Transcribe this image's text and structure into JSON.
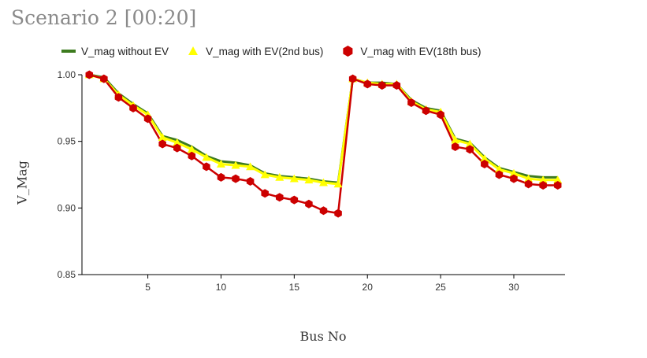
{
  "title": "Scenario 2 [00:20]",
  "colors": {
    "series_line_0": "#3d7b1f",
    "series_line_1": "#ffff00",
    "series_line_2": "#cc0000",
    "axis": "#000000"
  },
  "chart_data": {
    "type": "line",
    "title": "Scenario 2 [00:20]",
    "xlabel": "Bus No",
    "ylabel": "V_Mag",
    "xlim": [
      0.5,
      33.5
    ],
    "ylim": [
      0.85,
      1.0
    ],
    "xticks": [
      5,
      10,
      15,
      20,
      25,
      30
    ],
    "yticks": [
      0.85,
      0.9,
      0.95,
      1.0
    ],
    "ytick_labels": [
      "0.85",
      "0.90",
      "0.95",
      "1.00"
    ],
    "legend_position": "top",
    "x": [
      1,
      2,
      3,
      4,
      5,
      6,
      7,
      8,
      9,
      10,
      11,
      12,
      13,
      14,
      15,
      16,
      17,
      18,
      19,
      20,
      21,
      22,
      23,
      24,
      25,
      26,
      27,
      28,
      29,
      30,
      31,
      32,
      33
    ],
    "series": [
      {
        "name": "V_mag without EV",
        "marker": "line",
        "values": [
          1.0,
          0.998,
          0.986,
          0.978,
          0.971,
          0.954,
          0.951,
          0.946,
          0.939,
          0.935,
          0.934,
          0.932,
          0.926,
          0.924,
          0.923,
          0.922,
          0.92,
          0.919,
          0.997,
          0.994,
          0.994,
          0.993,
          0.981,
          0.975,
          0.973,
          0.952,
          0.949,
          0.938,
          0.93,
          0.927,
          0.924,
          0.923,
          0.923
        ]
      },
      {
        "name": "V_mag with EV(2nd bus)",
        "marker": "triangle",
        "values": [
          1.0,
          0.997,
          0.985,
          0.977,
          0.97,
          0.953,
          0.949,
          0.944,
          0.938,
          0.933,
          0.932,
          0.931,
          0.925,
          0.923,
          0.922,
          0.921,
          0.919,
          0.918,
          0.997,
          0.994,
          0.993,
          0.993,
          0.98,
          0.974,
          0.972,
          0.951,
          0.948,
          0.937,
          0.929,
          0.926,
          0.922,
          0.921,
          0.921
        ]
      },
      {
        "name": "V_mag with EV(18th bus)",
        "marker": "hexagon",
        "values": [
          1.0,
          0.997,
          0.983,
          0.975,
          0.967,
          0.948,
          0.945,
          0.939,
          0.931,
          0.923,
          0.922,
          0.92,
          0.911,
          0.908,
          0.906,
          0.903,
          0.898,
          0.896,
          0.997,
          0.993,
          0.992,
          0.992,
          0.979,
          0.973,
          0.97,
          0.946,
          0.944,
          0.933,
          0.925,
          0.922,
          0.918,
          0.917,
          0.917
        ]
      }
    ]
  }
}
